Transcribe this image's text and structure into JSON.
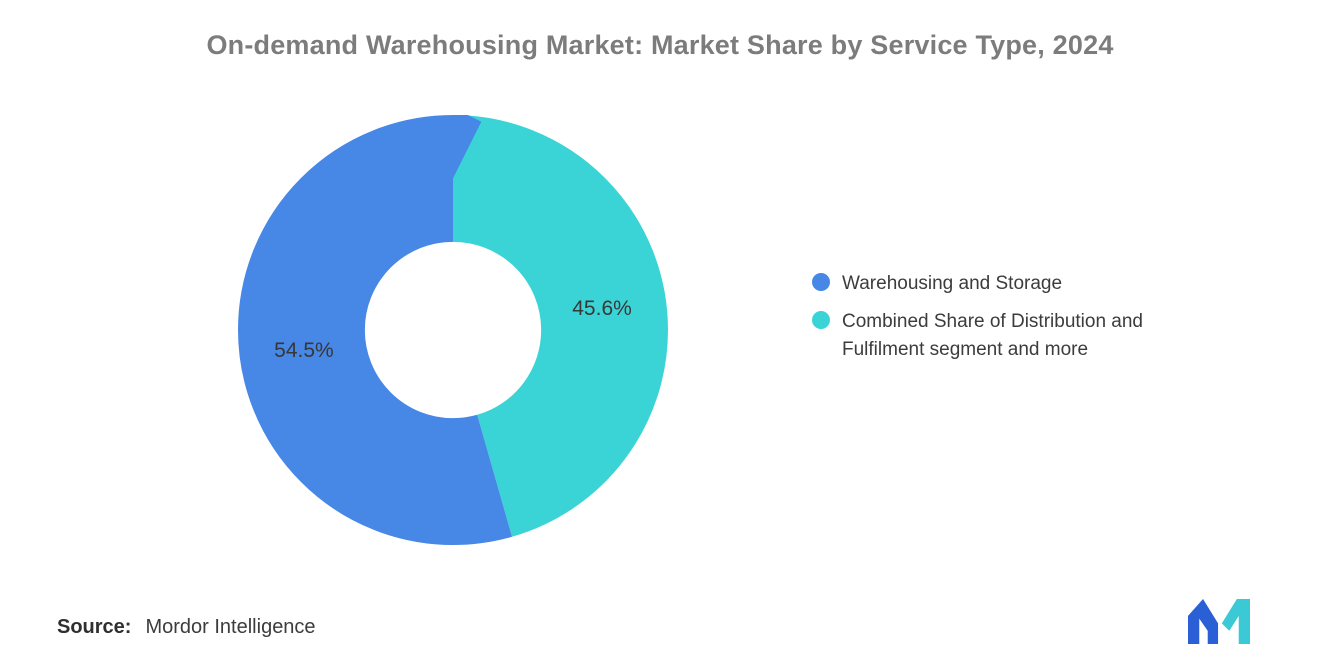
{
  "header": {
    "title": "On-demand Warehousing Market: Market Share by Service Type, 2024"
  },
  "chart_data": {
    "type": "pie",
    "donut": true,
    "title": "On-demand Warehousing Market: Market Share by Service Type, 2024",
    "slices": [
      {
        "label": "Warehousing and Storage",
        "value": 54.5,
        "display": "54.5%",
        "color": "#4787E6"
      },
      {
        "label": "Combined Share of Distribution and Fulfilment segment and more",
        "value": 45.6,
        "display": "45.6%",
        "color": "#3BD4D6"
      }
    ],
    "draw_order_clockwise_from_top": [
      1,
      0
    ],
    "start_angle_deg": 0,
    "direction": "clockwise",
    "inner_radius_ratio": 0.41,
    "legend_position": "right",
    "data_labels": "inside"
  },
  "source": {
    "label": "Source:",
    "value": "Mordor Intelligence"
  },
  "logo": {
    "name": "mordor-intelligence-logo",
    "blue": "#2B5FD6",
    "teal": "#3BC9D6"
  }
}
